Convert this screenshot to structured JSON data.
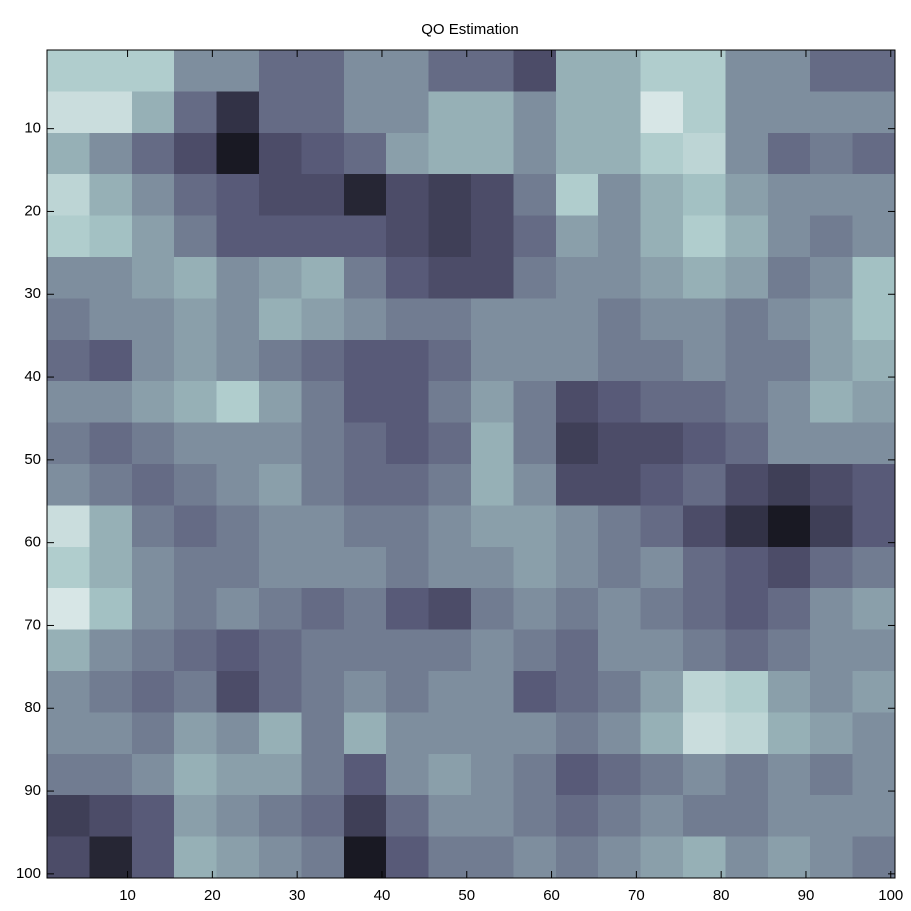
{
  "chart_data": {
    "type": "heatmap",
    "title": "QO Estimation",
    "x_edges": [
      0.5,
      5.5,
      10.5,
      15.5,
      20.5,
      25.5,
      30.5,
      35.5,
      40.5,
      45.5,
      50.5,
      55.5,
      60.5,
      65.5,
      70.5,
      75.5,
      80.5,
      85.5,
      90.5,
      95.5,
      100.5
    ],
    "y_edges": [
      0.5,
      5.5,
      10.5,
      15.5,
      20.5,
      25.5,
      30.5,
      35.5,
      40.5,
      45.5,
      50.5,
      55.5,
      60.5,
      65.5,
      70.5,
      75.5,
      80.5,
      85.5,
      90.5,
      95.5,
      100.5
    ],
    "z": [
      [
        0.7,
        0.7,
        0.7,
        0.5,
        0.5,
        0.4,
        0.4,
        0.5,
        0.5,
        0.4,
        0.4,
        0.3,
        0.6,
        0.6,
        0.7,
        0.7,
        0.5,
        0.5,
        0.4,
        0.4
      ],
      [
        0.8,
        0.8,
        0.6,
        0.4,
        0.2,
        0.4,
        0.4,
        0.5,
        0.5,
        0.6,
        0.6,
        0.5,
        0.6,
        0.6,
        0.85,
        0.7,
        0.5,
        0.5,
        0.5,
        0.5
      ],
      [
        0.6,
        0.5,
        0.4,
        0.3,
        0.1,
        0.3,
        0.35,
        0.4,
        0.55,
        0.6,
        0.6,
        0.5,
        0.6,
        0.6,
        0.7,
        0.75,
        0.5,
        0.4,
        0.45,
        0.4
      ],
      [
        0.75,
        0.6,
        0.5,
        0.4,
        0.35,
        0.3,
        0.3,
        0.15,
        0.3,
        0.25,
        0.3,
        0.45,
        0.7,
        0.5,
        0.6,
        0.65,
        0.55,
        0.5,
        0.5,
        0.5
      ],
      [
        0.7,
        0.65,
        0.55,
        0.45,
        0.35,
        0.35,
        0.35,
        0.35,
        0.3,
        0.25,
        0.3,
        0.4,
        0.55,
        0.5,
        0.6,
        0.7,
        0.6,
        0.5,
        0.45,
        0.5
      ],
      [
        0.5,
        0.5,
        0.55,
        0.6,
        0.5,
        0.55,
        0.6,
        0.45,
        0.35,
        0.3,
        0.3,
        0.45,
        0.5,
        0.5,
        0.55,
        0.6,
        0.55,
        0.45,
        0.5,
        0.65
      ],
      [
        0.45,
        0.5,
        0.5,
        0.55,
        0.5,
        0.6,
        0.55,
        0.5,
        0.45,
        0.45,
        0.5,
        0.5,
        0.5,
        0.45,
        0.5,
        0.5,
        0.45,
        0.5,
        0.55,
        0.65
      ],
      [
        0.4,
        0.35,
        0.5,
        0.55,
        0.5,
        0.45,
        0.4,
        0.35,
        0.35,
        0.4,
        0.5,
        0.5,
        0.5,
        0.45,
        0.45,
        0.5,
        0.45,
        0.45,
        0.55,
        0.6
      ],
      [
        0.5,
        0.5,
        0.55,
        0.6,
        0.7,
        0.55,
        0.45,
        0.35,
        0.35,
        0.45,
        0.55,
        0.45,
        0.3,
        0.35,
        0.4,
        0.4,
        0.45,
        0.5,
        0.6,
        0.55
      ],
      [
        0.45,
        0.4,
        0.45,
        0.5,
        0.5,
        0.5,
        0.45,
        0.4,
        0.35,
        0.4,
        0.6,
        0.45,
        0.25,
        0.3,
        0.3,
        0.35,
        0.4,
        0.5,
        0.5,
        0.5
      ],
      [
        0.5,
        0.45,
        0.4,
        0.45,
        0.5,
        0.55,
        0.45,
        0.4,
        0.4,
        0.45,
        0.6,
        0.5,
        0.3,
        0.3,
        0.35,
        0.4,
        0.3,
        0.25,
        0.3,
        0.35
      ],
      [
        0.8,
        0.6,
        0.45,
        0.4,
        0.45,
        0.5,
        0.5,
        0.45,
        0.45,
        0.5,
        0.55,
        0.55,
        0.5,
        0.45,
        0.4,
        0.3,
        0.2,
        0.1,
        0.25,
        0.35
      ],
      [
        0.7,
        0.6,
        0.5,
        0.45,
        0.45,
        0.5,
        0.5,
        0.5,
        0.45,
        0.5,
        0.5,
        0.55,
        0.5,
        0.45,
        0.5,
        0.4,
        0.35,
        0.3,
        0.4,
        0.45
      ],
      [
        0.85,
        0.65,
        0.5,
        0.45,
        0.5,
        0.45,
        0.4,
        0.45,
        0.35,
        0.3,
        0.45,
        0.5,
        0.45,
        0.5,
        0.45,
        0.4,
        0.35,
        0.4,
        0.5,
        0.55
      ],
      [
        0.6,
        0.5,
        0.45,
        0.4,
        0.35,
        0.4,
        0.45,
        0.45,
        0.45,
        0.45,
        0.5,
        0.45,
        0.4,
        0.5,
        0.5,
        0.45,
        0.4,
        0.45,
        0.5,
        0.5
      ],
      [
        0.5,
        0.45,
        0.4,
        0.45,
        0.3,
        0.4,
        0.45,
        0.5,
        0.45,
        0.5,
        0.5,
        0.35,
        0.4,
        0.45,
        0.55,
        0.75,
        0.7,
        0.55,
        0.5,
        0.55
      ],
      [
        0.5,
        0.5,
        0.45,
        0.55,
        0.5,
        0.6,
        0.45,
        0.6,
        0.5,
        0.5,
        0.5,
        0.5,
        0.45,
        0.5,
        0.6,
        0.8,
        0.75,
        0.6,
        0.55,
        0.5
      ],
      [
        0.45,
        0.45,
        0.5,
        0.6,
        0.55,
        0.55,
        0.45,
        0.35,
        0.5,
        0.55,
        0.5,
        0.45,
        0.35,
        0.4,
        0.45,
        0.5,
        0.45,
        0.5,
        0.45,
        0.5
      ],
      [
        0.25,
        0.3,
        0.35,
        0.55,
        0.5,
        0.45,
        0.4,
        0.25,
        0.4,
        0.5,
        0.5,
        0.45,
        0.4,
        0.45,
        0.5,
        0.45,
        0.45,
        0.5,
        0.5,
        0.5
      ],
      [
        0.3,
        0.15,
        0.35,
        0.6,
        0.55,
        0.5,
        0.45,
        0.1,
        0.35,
        0.45,
        0.45,
        0.5,
        0.45,
        0.5,
        0.55,
        0.6,
        0.5,
        0.55,
        0.5,
        0.45
      ]
    ],
    "clim": [
      0,
      1
    ],
    "colormap": [
      "#000000",
      "#545474",
      "#a7c7c7",
      "#ffffff"
    ],
    "xlim": [
      0.5,
      100.5
    ],
    "ylim": [
      0.5,
      100.5
    ],
    "y_reversed": true,
    "xticks": [
      10,
      20,
      30,
      40,
      50,
      60,
      70,
      80,
      90,
      100
    ],
    "yticks": [
      10,
      20,
      30,
      40,
      50,
      60,
      70,
      80,
      90,
      100
    ]
  }
}
